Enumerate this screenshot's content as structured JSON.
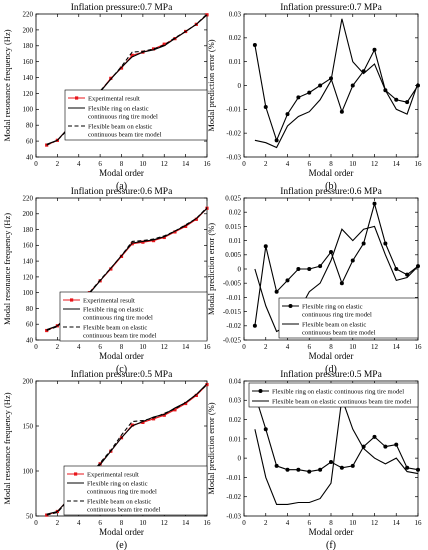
{
  "chart_data": [
    {
      "id": "a",
      "type": "line",
      "title": "Inflation pressure:0.7 MPa",
      "xlabel": "Modal order",
      "ylabel": "Modal resonance frequency (Hz)",
      "panel_label": "(a)",
      "xlim": [
        0,
        16
      ],
      "ylim": [
        40,
        220
      ],
      "xticks": [
        0,
        2,
        4,
        6,
        8,
        10,
        12,
        14,
        16
      ],
      "yticks": [
        40,
        60,
        80,
        100,
        120,
        140,
        160,
        180,
        200,
        220
      ],
      "legend_position": "bottom-right",
      "legend": [
        "Experimental result",
        "Flexible ring on elastic continuous ring tire model",
        "Flexible beam on elastic continuous beam tire model"
      ],
      "series": [
        {
          "name": "Experimental result",
          "color": "#e8161b",
          "style": "solid",
          "marker": "square",
          "x": [
            1,
            2,
            3,
            4,
            5,
            6,
            7,
            8,
            9,
            10,
            11,
            12,
            13,
            14,
            15,
            16
          ],
          "y": [
            55,
            61,
            76,
            92,
            107,
            122,
            139,
            152,
            168,
            172,
            176,
            182,
            189,
            198,
            207,
            219
          ]
        },
        {
          "name": "Flexible ring on elastic continuous ring tire model",
          "color": "#000000",
          "style": "solid",
          "marker": "none",
          "x": [
            1,
            2,
            3,
            4,
            5,
            6,
            7,
            8,
            9,
            10,
            11,
            12,
            13,
            14,
            15,
            16
          ],
          "y": [
            56,
            61,
            76,
            91,
            106,
            122,
            138,
            153,
            166,
            172,
            175,
            180,
            189,
            198,
            207,
            219
          ]
        },
        {
          "name": "Flexible beam on elastic continuous beam tire model",
          "color": "#000000",
          "style": "dashed",
          "marker": "none",
          "x": [
            1,
            2,
            3,
            4,
            5,
            6,
            7,
            8,
            9,
            10,
            11,
            12,
            13,
            14,
            15,
            16
          ],
          "y": [
            55,
            61,
            75,
            91,
            107,
            123,
            138,
            154,
            172,
            173,
            176,
            181,
            190,
            198,
            207,
            220
          ]
        }
      ]
    },
    {
      "id": "b",
      "type": "line",
      "title": "Inflation pressure:0.7 MPa",
      "xlabel": "Modal order",
      "ylabel": "Modal prediction error (%)",
      "panel_label": "(b)",
      "xlim": [
        0,
        16
      ],
      "ylim": [
        -0.03,
        0.03
      ],
      "xticks": [
        0,
        2,
        4,
        6,
        8,
        10,
        12,
        14,
        16
      ],
      "yticks": [
        "-0.03",
        "-0.02",
        "-0.01",
        "0",
        "0.01",
        "0.02",
        "0.03"
      ],
      "legend_position": "none",
      "legend": [],
      "series": [
        {
          "name": "Flexible ring on elastic continuous ring tire model",
          "color": "#000000",
          "style": "solid",
          "marker": "circle",
          "x": [
            1,
            2,
            3,
            4,
            5,
            6,
            7,
            8,
            9,
            10,
            11,
            12,
            13,
            14,
            15,
            16
          ],
          "y": [
            0.017,
            -0.009,
            -0.023,
            -0.012,
            -0.005,
            -0.003,
            0.0,
            0.003,
            -0.011,
            0.0,
            0.006,
            0.015,
            -0.002,
            -0.006,
            -0.007,
            0.0
          ]
        },
        {
          "name": "Flexible beam on elastic continuous beam tire model",
          "color": "#000000",
          "style": "solid",
          "marker": "none",
          "x": [
            1,
            2,
            3,
            4,
            5,
            6,
            7,
            8,
            9,
            10,
            11,
            12,
            13,
            14,
            15,
            16
          ],
          "y": [
            -0.023,
            -0.024,
            -0.026,
            -0.017,
            -0.013,
            -0.011,
            -0.006,
            0.002,
            0.028,
            0.01,
            0.005,
            0.009,
            -0.002,
            -0.01,
            -0.012,
            0.001
          ]
        }
      ]
    },
    {
      "id": "c",
      "type": "line",
      "title": "Inflation pressure:0.6 MPa",
      "xlabel": "Modal order",
      "ylabel": "Modal resonance frequency (Hz)",
      "panel_label": "(c)",
      "xlim": [
        0,
        16
      ],
      "ylim": [
        40,
        220
      ],
      "xticks": [
        0,
        2,
        4,
        6,
        8,
        10,
        12,
        14,
        16
      ],
      "yticks": [
        40,
        60,
        80,
        100,
        120,
        140,
        160,
        180,
        200,
        220
      ],
      "legend_position": "bottom-right",
      "legend": [
        "Experimental result",
        "Flexible ring on elastic continuous ring tire model",
        "Flexible beam on elastic continuous beam tire model"
      ],
      "series": [
        {
          "name": "Experimental result",
          "color": "#e8161b",
          "style": "solid",
          "marker": "square",
          "x": [
            1,
            2,
            3,
            4,
            5,
            6,
            7,
            8,
            9,
            10,
            11,
            12,
            13,
            14,
            15,
            16
          ],
          "y": [
            52,
            58,
            71,
            84,
            100,
            115,
            130,
            146,
            162,
            164,
            166,
            170,
            177,
            184,
            193,
            207
          ]
        },
        {
          "name": "Flexible ring on elastic continuous ring tire model",
          "color": "#000000",
          "style": "solid",
          "marker": "none",
          "x": [
            1,
            2,
            3,
            4,
            5,
            6,
            7,
            8,
            9,
            10,
            11,
            12,
            13,
            14,
            15,
            16
          ],
          "y": [
            53,
            58,
            70,
            84,
            99,
            115,
            131,
            147,
            163,
            165,
            167,
            171,
            178,
            185,
            194,
            207
          ]
        },
        {
          "name": "Flexible beam on elastic continuous beam tire model",
          "color": "#000000",
          "style": "dashed",
          "marker": "none",
          "x": [
            1,
            2,
            3,
            4,
            5,
            6,
            7,
            8,
            9,
            10,
            11,
            12,
            13,
            14,
            15,
            16
          ],
          "y": [
            52,
            57,
            71,
            85,
            100,
            116,
            131,
            147,
            165,
            166,
            168,
            172,
            178,
            186,
            194,
            208
          ]
        }
      ]
    },
    {
      "id": "d",
      "type": "line",
      "title": "Inflation pressure:0.6 MPa",
      "xlabel": "Modal order",
      "ylabel": "Modal prediction error (%)",
      "panel_label": "(d)",
      "xlim": [
        0,
        16
      ],
      "ylim": [
        -0.025,
        0.025
      ],
      "xticks": [
        0,
        2,
        4,
        6,
        8,
        10,
        12,
        14,
        16
      ],
      "yticks": [
        "-0.025",
        "-0.02",
        "-0.015",
        "-0.01",
        "-0.005",
        "0",
        "0.005",
        "0.01",
        "0.015",
        "0.02",
        "0.025"
      ],
      "legend_position": "bottom-right",
      "legend": [
        "Flexible ring on elastic continuous ring tire model",
        "Flexible beam on elastic continuous beam tire model"
      ],
      "series": [
        {
          "name": "Flexible ring on elastic continuous ring tire model",
          "color": "#000000",
          "style": "solid",
          "marker": "circle",
          "x": [
            1,
            2,
            3,
            4,
            5,
            6,
            7,
            8,
            9,
            10,
            11,
            12,
            13,
            14,
            15,
            16
          ],
          "y": [
            -0.02,
            0.008,
            -0.008,
            -0.004,
            0.0,
            0.0,
            0.001,
            0.006,
            -0.005,
            0.003,
            0.009,
            0.023,
            0.009,
            0.0,
            -0.002,
            0.001
          ]
        },
        {
          "name": "Flexible beam on elastic continuous beam tire model",
          "color": "#000000",
          "style": "solid",
          "marker": "none",
          "x": [
            1,
            2,
            3,
            4,
            5,
            6,
            7,
            8,
            9,
            10,
            11,
            12,
            13,
            14,
            15,
            16
          ],
          "y": [
            0.0,
            -0.013,
            -0.022,
            -0.02,
            -0.015,
            -0.008,
            -0.005,
            0.003,
            0.014,
            0.01,
            0.014,
            0.015,
            0.005,
            -0.004,
            -0.003,
            0.001
          ]
        }
      ]
    },
    {
      "id": "e",
      "type": "line",
      "title": "Inflation pressure:0.5 MPa",
      "xlabel": "Modal order",
      "ylabel": "Modal resonance frequency (Hz)",
      "panel_label": "(e)",
      "xlim": [
        0,
        16
      ],
      "ylim": [
        50,
        200
      ],
      "xticks": [
        0,
        2,
        4,
        6,
        8,
        10,
        12,
        14,
        16
      ],
      "yticks": [
        50,
        100,
        150,
        200
      ],
      "legend_position": "bottom-right",
      "legend": [
        "Experimental result",
        "Flexible ring on elastic continuous ring tire model",
        "Flexible beam on elastic continuous beam tire model"
      ],
      "series": [
        {
          "name": "Experimental result",
          "color": "#e8161b",
          "style": "solid",
          "marker": "square",
          "x": [
            1,
            2,
            3,
            4,
            5,
            6,
            7,
            8,
            9,
            10,
            11,
            12,
            13,
            14,
            15,
            16
          ],
          "y": [
            51,
            55,
            68,
            82,
            95,
            108,
            122,
            137,
            151,
            154,
            158,
            162,
            168,
            175,
            184,
            196
          ]
        },
        {
          "name": "Flexible ring on elastic continuous ring tire model",
          "color": "#000000",
          "style": "solid",
          "marker": "none",
          "x": [
            1,
            2,
            3,
            4,
            5,
            6,
            7,
            8,
            9,
            10,
            11,
            12,
            13,
            14,
            15,
            16
          ],
          "y": [
            52,
            55,
            68,
            81,
            95,
            107,
            122,
            137,
            150,
            155,
            160,
            163,
            170,
            176,
            185,
            197
          ]
        },
        {
          "name": "Flexible beam on elastic continuous beam tire model",
          "color": "#000000",
          "style": "dashed",
          "marker": "none",
          "x": [
            1,
            2,
            3,
            4,
            5,
            6,
            7,
            8,
            9,
            10,
            11,
            12,
            13,
            14,
            15,
            16
          ],
          "y": [
            51,
            54,
            67,
            80,
            94,
            109,
            123,
            140,
            155,
            156,
            159,
            164,
            169,
            176,
            185,
            196
          ]
        }
      ]
    },
    {
      "id": "f",
      "type": "line",
      "title": "Inflation pressure:0.5 MPa",
      "xlabel": "Modal order",
      "ylabel": "Modal prediction error (%)",
      "panel_label": "(f)",
      "xlim": [
        0,
        16
      ],
      "ylim": [
        -0.03,
        0.04
      ],
      "xticks": [
        0,
        2,
        4,
        6,
        8,
        10,
        12,
        14,
        16
      ],
      "yticks": [
        "-0.03",
        "-0.02",
        "-0.01",
        "0",
        "0.01",
        "0.02",
        "0.03",
        "0.04"
      ],
      "legend_position": "top-right",
      "legend": [
        "Flexible ring on elastic continuous ring tire model",
        "Flexible beam on elastic continuous beam tire model"
      ],
      "series": [
        {
          "name": "Flexible ring on elastic continuous ring tire model",
          "color": "#000000",
          "style": "solid",
          "marker": "circle",
          "x": [
            1,
            2,
            3,
            4,
            5,
            6,
            7,
            8,
            9,
            10,
            11,
            12,
            13,
            14,
            15,
            16
          ],
          "y": [
            0.033,
            0.015,
            -0.004,
            -0.006,
            -0.006,
            -0.007,
            -0.006,
            -0.002,
            -0.005,
            -0.004,
            0.006,
            0.011,
            0.006,
            0.007,
            -0.005,
            -0.006
          ]
        },
        {
          "name": "Flexible beam on elastic continuous beam tire model",
          "color": "#000000",
          "style": "solid",
          "marker": "none",
          "x": [
            1,
            2,
            3,
            4,
            5,
            6,
            7,
            8,
            9,
            10,
            11,
            12,
            13,
            14,
            15,
            16
          ],
          "y": [
            0.015,
            -0.01,
            -0.024,
            -0.024,
            -0.023,
            -0.023,
            -0.021,
            -0.013,
            0.031,
            0.015,
            0.005,
            0.0,
            -0.003,
            0.0,
            -0.007,
            -0.008
          ]
        }
      ]
    }
  ]
}
